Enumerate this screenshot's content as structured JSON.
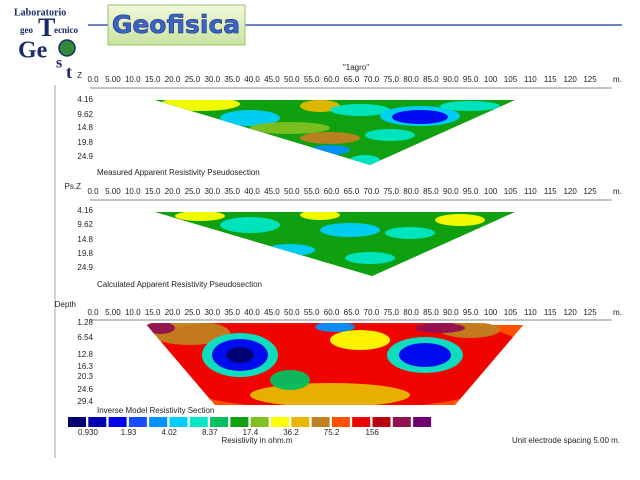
{
  "logo": {
    "top": "Laboratorio",
    "geo": "geo",
    "big_t": "T",
    "ecnico": "ecnico",
    "ge": "Ge",
    "s": "s",
    "t": "t"
  },
  "title": "Geofisica",
  "profile_name": "\"1agro\"",
  "x_ticks": [
    "0.0",
    "5.00",
    "10.0",
    "15.0",
    "20.0",
    "25.0",
    "30.0",
    "35.0",
    "40.0",
    "45.0",
    "50.0",
    "55.0",
    "60.0",
    "65.0",
    "70.0",
    "75.0",
    "80.0",
    "85.0",
    "90.0",
    "95.0",
    "100",
    "105",
    "110",
    "115",
    "120",
    "125"
  ],
  "x_unit": "m.",
  "panels": [
    {
      "axis_label": "Z",
      "depths": [
        "4.16",
        "9.62",
        "14.8",
        "19.8",
        "24.9"
      ],
      "caption": "Measured Apparent Resistivity Pseudosection"
    },
    {
      "axis_label": "Ps.Z",
      "depths": [
        "4.16",
        "9.62",
        "14.8",
        "19.8",
        "24.9"
      ],
      "caption": "Calculated Apparent Resistivity Pseudosection"
    },
    {
      "axis_label": "Depth",
      "depths": [
        "1.28",
        "6.54",
        "12.8",
        "16.3",
        "20.3",
        "24.6",
        "29.4"
      ],
      "caption": "Inverse Model Resistivity Section"
    }
  ],
  "colorbar": {
    "labels": [
      "0.930",
      "1.93",
      "4.02",
      "8.37",
      "17.4",
      "36.2",
      "75.2",
      "156"
    ],
    "colors": [
      "#000070",
      "#0000b0",
      "#0000f0",
      "#1a4cff",
      "#0090ff",
      "#00d0ff",
      "#00e8c8",
      "#00c060",
      "#10a010",
      "#80c020",
      "#ffff00",
      "#e8b800",
      "#c08020",
      "#ff5000",
      "#f00000",
      "#b80010",
      "#901050",
      "#700070"
    ],
    "unit_label": "Resistivity in ohm.m"
  },
  "spacing_note": "Unit electrode spacing 5.00 m."
}
